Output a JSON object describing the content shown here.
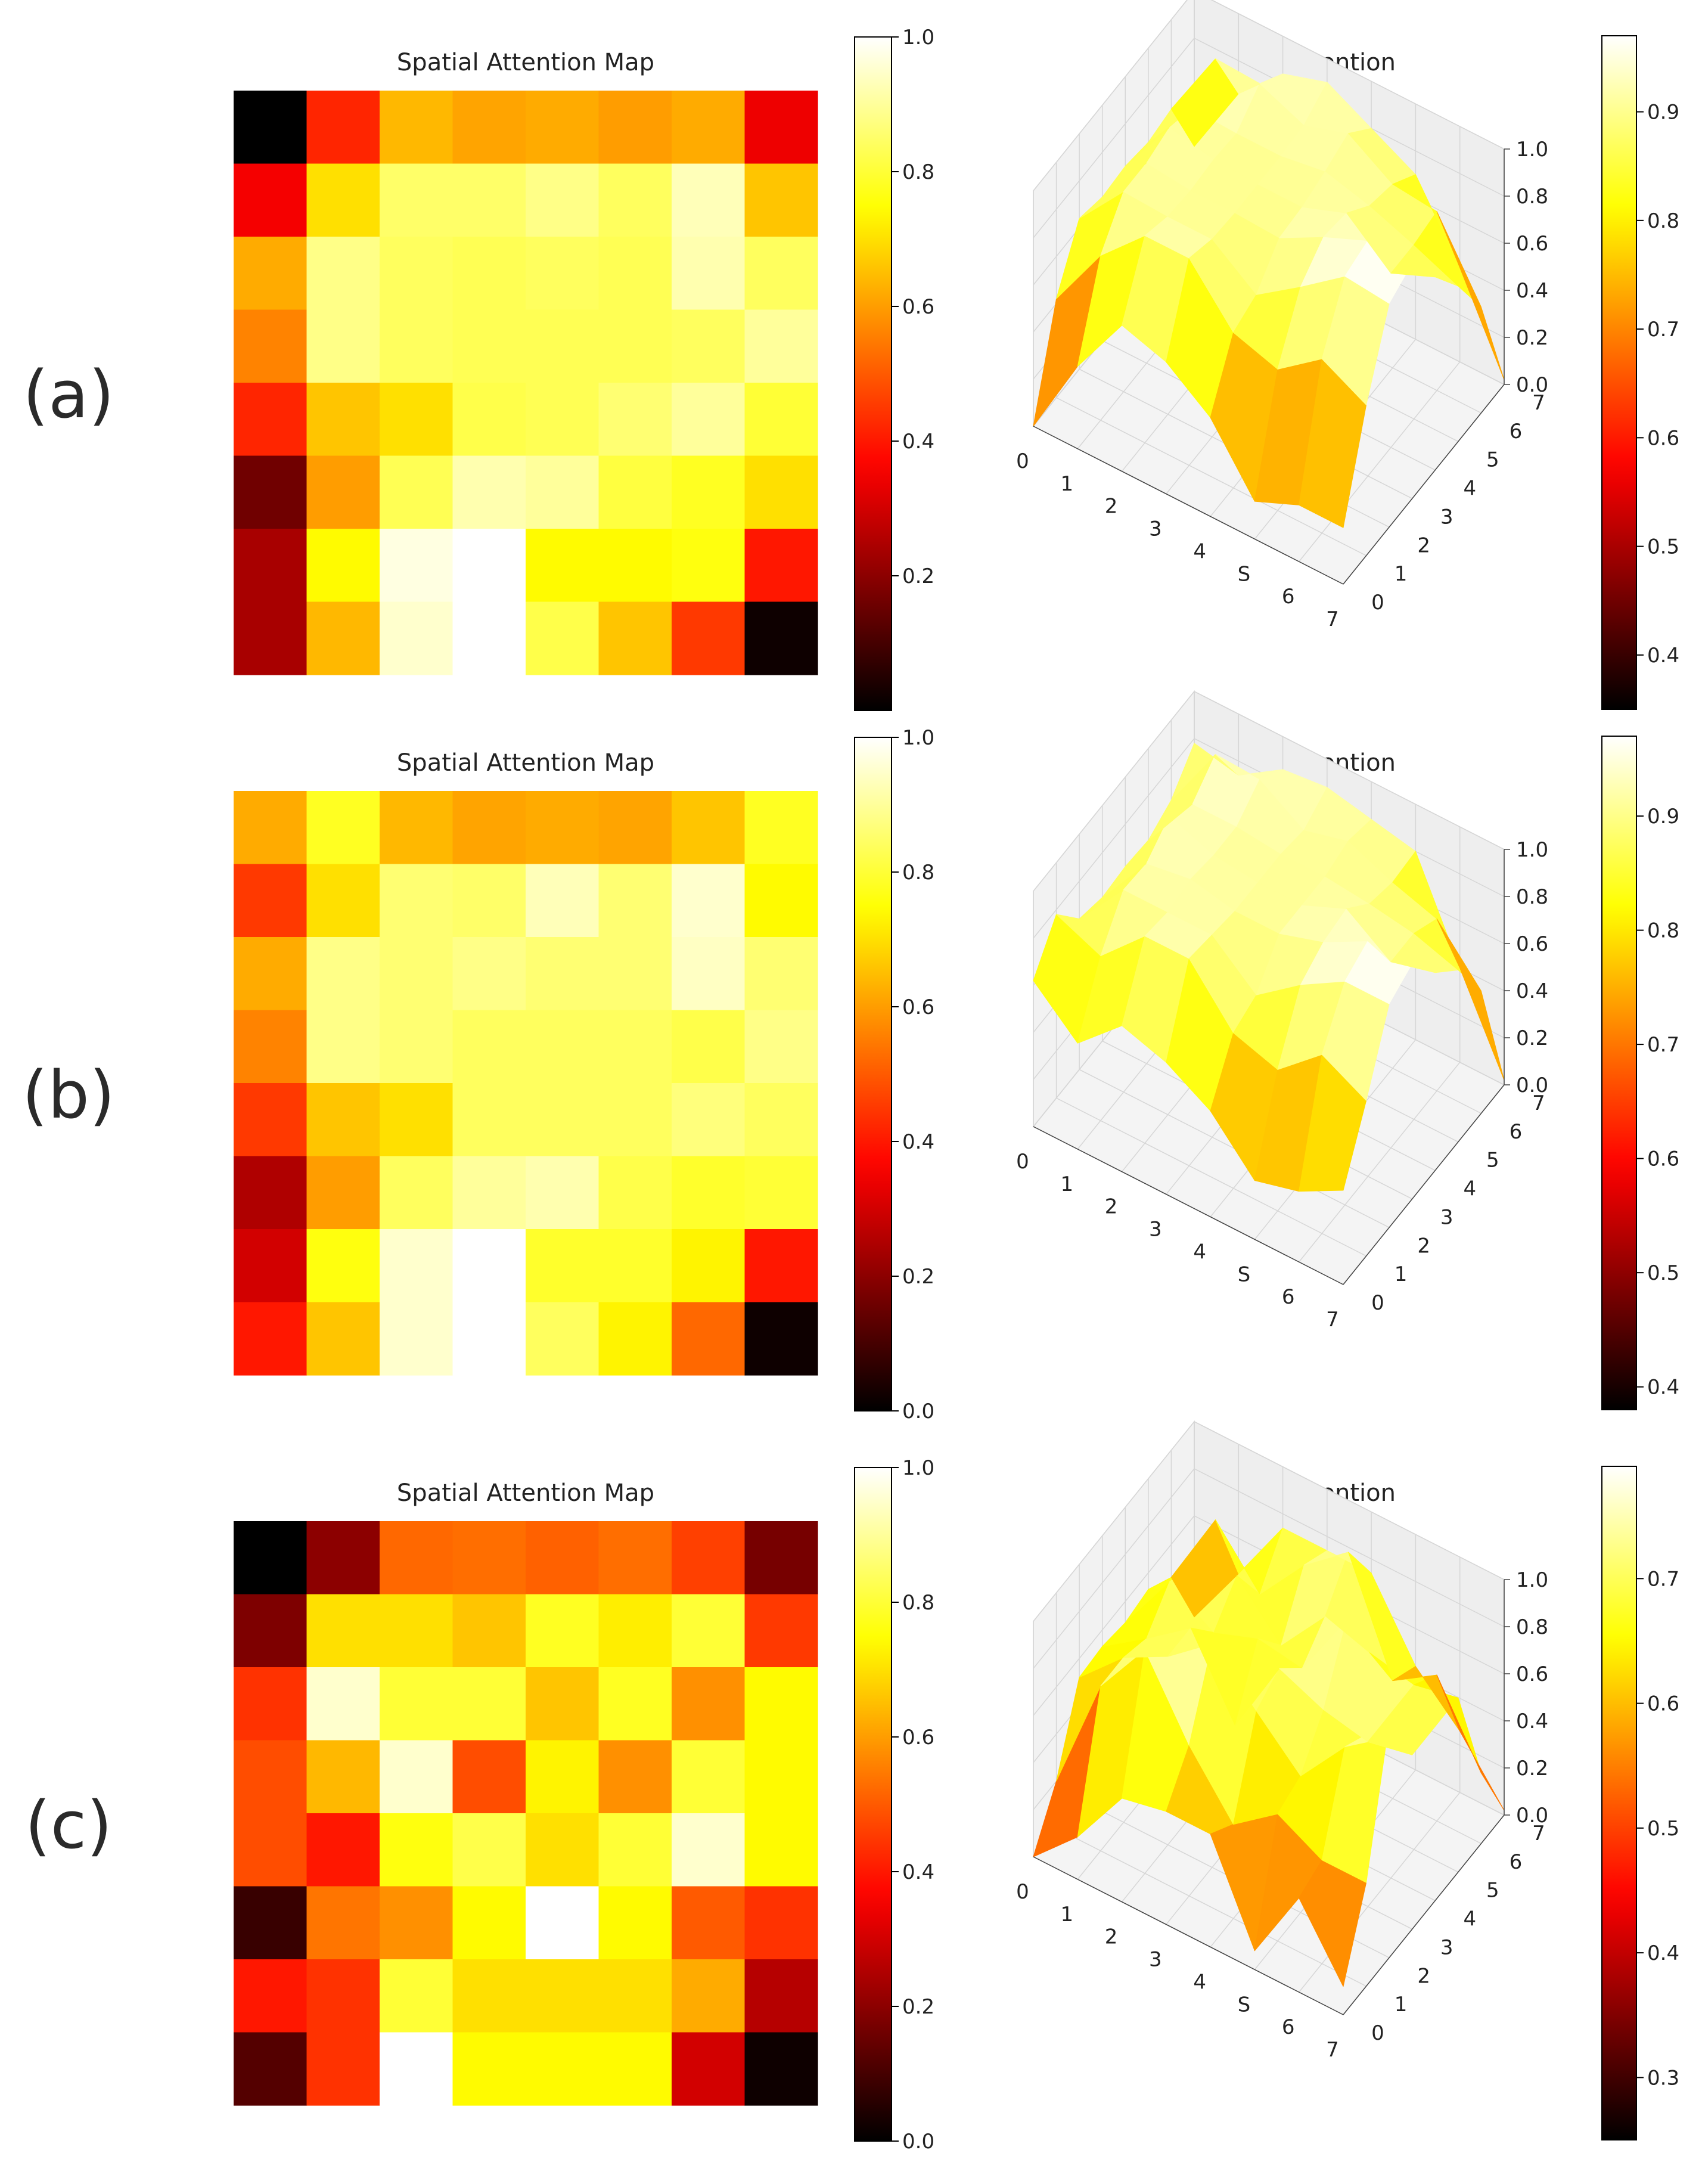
{
  "colormap": "hot",
  "chart_data": [
    {
      "panel_label": "(a)",
      "heatmap": {
        "type": "heatmap",
        "title": "Spatial Attention Map",
        "rows": 8,
        "cols": 8,
        "values": [
          [
            0.0,
            0.42,
            0.64,
            0.61,
            0.62,
            0.6,
            0.62,
            0.34
          ],
          [
            0.35,
            0.7,
            0.85,
            0.85,
            0.88,
            0.84,
            0.93,
            0.66
          ],
          [
            0.62,
            0.88,
            0.84,
            0.83,
            0.84,
            0.83,
            0.92,
            0.84
          ],
          [
            0.56,
            0.88,
            0.84,
            0.83,
            0.83,
            0.83,
            0.84,
            0.9
          ],
          [
            0.42,
            0.66,
            0.7,
            0.82,
            0.83,
            0.86,
            0.9,
            0.8
          ],
          [
            0.16,
            0.6,
            0.83,
            0.92,
            0.9,
            0.81,
            0.78,
            0.7
          ],
          [
            0.24,
            0.74,
            0.97,
            1.0,
            0.74,
            0.74,
            0.76,
            0.4
          ],
          [
            0.24,
            0.64,
            0.95,
            1.0,
            0.82,
            0.66,
            0.45,
            0.02
          ]
        ],
        "colorbar_ticks": [
          "0.2",
          "0.4",
          "0.6",
          "0.8",
          "1.0"
        ],
        "colorbar_min": 0.0,
        "colorbar_max": 1.0
      },
      "surface": {
        "type": "surface3d",
        "title": "3D Spatial Attention",
        "x_ticks": [
          "0",
          "1",
          "2",
          "3",
          "4",
          "S",
          "6",
          "7"
        ],
        "y_ticks": [
          "0",
          "1",
          "2",
          "3",
          "4",
          "5",
          "6",
          "7"
        ],
        "z_ticks": [
          "0.0",
          "0.2",
          "0.4",
          "0.6",
          "0.8",
          "1.0"
        ],
        "colorbar_ticks": [
          "0.4",
          "0.5",
          "0.6",
          "0.7",
          "0.8",
          "0.9"
        ],
        "colorbar_min": 0.35,
        "colorbar_max": 0.97
      }
    },
    {
      "panel_label": "(b)",
      "heatmap": {
        "type": "heatmap",
        "title": "Spatial Attention Map",
        "rows": 8,
        "cols": 8,
        "values": [
          [
            0.62,
            0.78,
            0.64,
            0.61,
            0.62,
            0.61,
            0.66,
            0.78
          ],
          [
            0.45,
            0.7,
            0.86,
            0.85,
            0.93,
            0.86,
            0.95,
            0.74
          ],
          [
            0.62,
            0.88,
            0.86,
            0.88,
            0.86,
            0.86,
            0.94,
            0.86
          ],
          [
            0.56,
            0.88,
            0.86,
            0.84,
            0.84,
            0.84,
            0.82,
            0.88
          ],
          [
            0.45,
            0.66,
            0.7,
            0.84,
            0.84,
            0.84,
            0.87,
            0.84
          ],
          [
            0.25,
            0.6,
            0.84,
            0.9,
            0.92,
            0.82,
            0.79,
            0.8
          ],
          [
            0.3,
            0.76,
            0.95,
            1.0,
            0.79,
            0.79,
            0.73,
            0.4
          ],
          [
            0.4,
            0.66,
            0.95,
            1.0,
            0.84,
            0.73,
            0.52,
            0.02
          ]
        ],
        "colorbar_ticks": [
          "0.0",
          "0.2",
          "0.4",
          "0.6",
          "0.8",
          "1.0"
        ],
        "colorbar_min": 0.0,
        "colorbar_max": 1.0
      },
      "surface": {
        "type": "surface3d",
        "title": "3D Spatial Attention",
        "x_ticks": [
          "0",
          "1",
          "2",
          "3",
          "4",
          "S",
          "6",
          "7"
        ],
        "y_ticks": [
          "0",
          "1",
          "2",
          "3",
          "4",
          "5",
          "6",
          "7"
        ],
        "z_ticks": [
          "0.0",
          "0.2",
          "0.4",
          "0.6",
          "0.8",
          "1.0"
        ],
        "colorbar_ticks": [
          "0.4",
          "0.5",
          "0.6",
          "0.7",
          "0.8",
          "0.9"
        ],
        "colorbar_min": 0.38,
        "colorbar_max": 0.97
      }
    },
    {
      "panel_label": "(c)",
      "heatmap": {
        "type": "heatmap",
        "title": "Spatial Attention Map",
        "rows": 8,
        "cols": 8,
        "values": [
          [
            0.0,
            0.2,
            0.52,
            0.53,
            0.51,
            0.53,
            0.46,
            0.17
          ],
          [
            0.18,
            0.7,
            0.7,
            0.66,
            0.78,
            0.72,
            0.8,
            0.45
          ],
          [
            0.44,
            0.95,
            0.8,
            0.8,
            0.66,
            0.78,
            0.58,
            0.74
          ],
          [
            0.48,
            0.64,
            0.95,
            0.48,
            0.73,
            0.58,
            0.8,
            0.74
          ],
          [
            0.48,
            0.4,
            0.76,
            0.82,
            0.7,
            0.8,
            0.95,
            0.74
          ],
          [
            0.08,
            0.54,
            0.58,
            0.74,
            1.0,
            0.74,
            0.5,
            0.44
          ],
          [
            0.4,
            0.44,
            0.8,
            0.7,
            0.7,
            0.7,
            0.62,
            0.26
          ],
          [
            0.12,
            0.44,
            1.0,
            0.74,
            0.74,
            0.74,
            0.3,
            0.02
          ]
        ],
        "colorbar_ticks": [
          "0.0",
          "0.2",
          "0.4",
          "0.6",
          "0.8",
          "1.0"
        ],
        "colorbar_min": 0.0,
        "colorbar_max": 1.0
      },
      "surface": {
        "type": "surface3d",
        "title": "3D Spatial Attention",
        "x_ticks": [
          "0",
          "1",
          "2",
          "3",
          "4",
          "S",
          "6",
          "7"
        ],
        "y_ticks": [
          "0",
          "1",
          "2",
          "3",
          "4",
          "5",
          "6",
          "7"
        ],
        "z_ticks": [
          "0.0",
          "0.2",
          "0.4",
          "0.6",
          "0.8",
          "1.0"
        ],
        "colorbar_ticks": [
          "0.3",
          "0.4",
          "0.5",
          "0.6",
          "0.7"
        ],
        "colorbar_min": 0.25,
        "colorbar_max": 0.79
      }
    }
  ]
}
